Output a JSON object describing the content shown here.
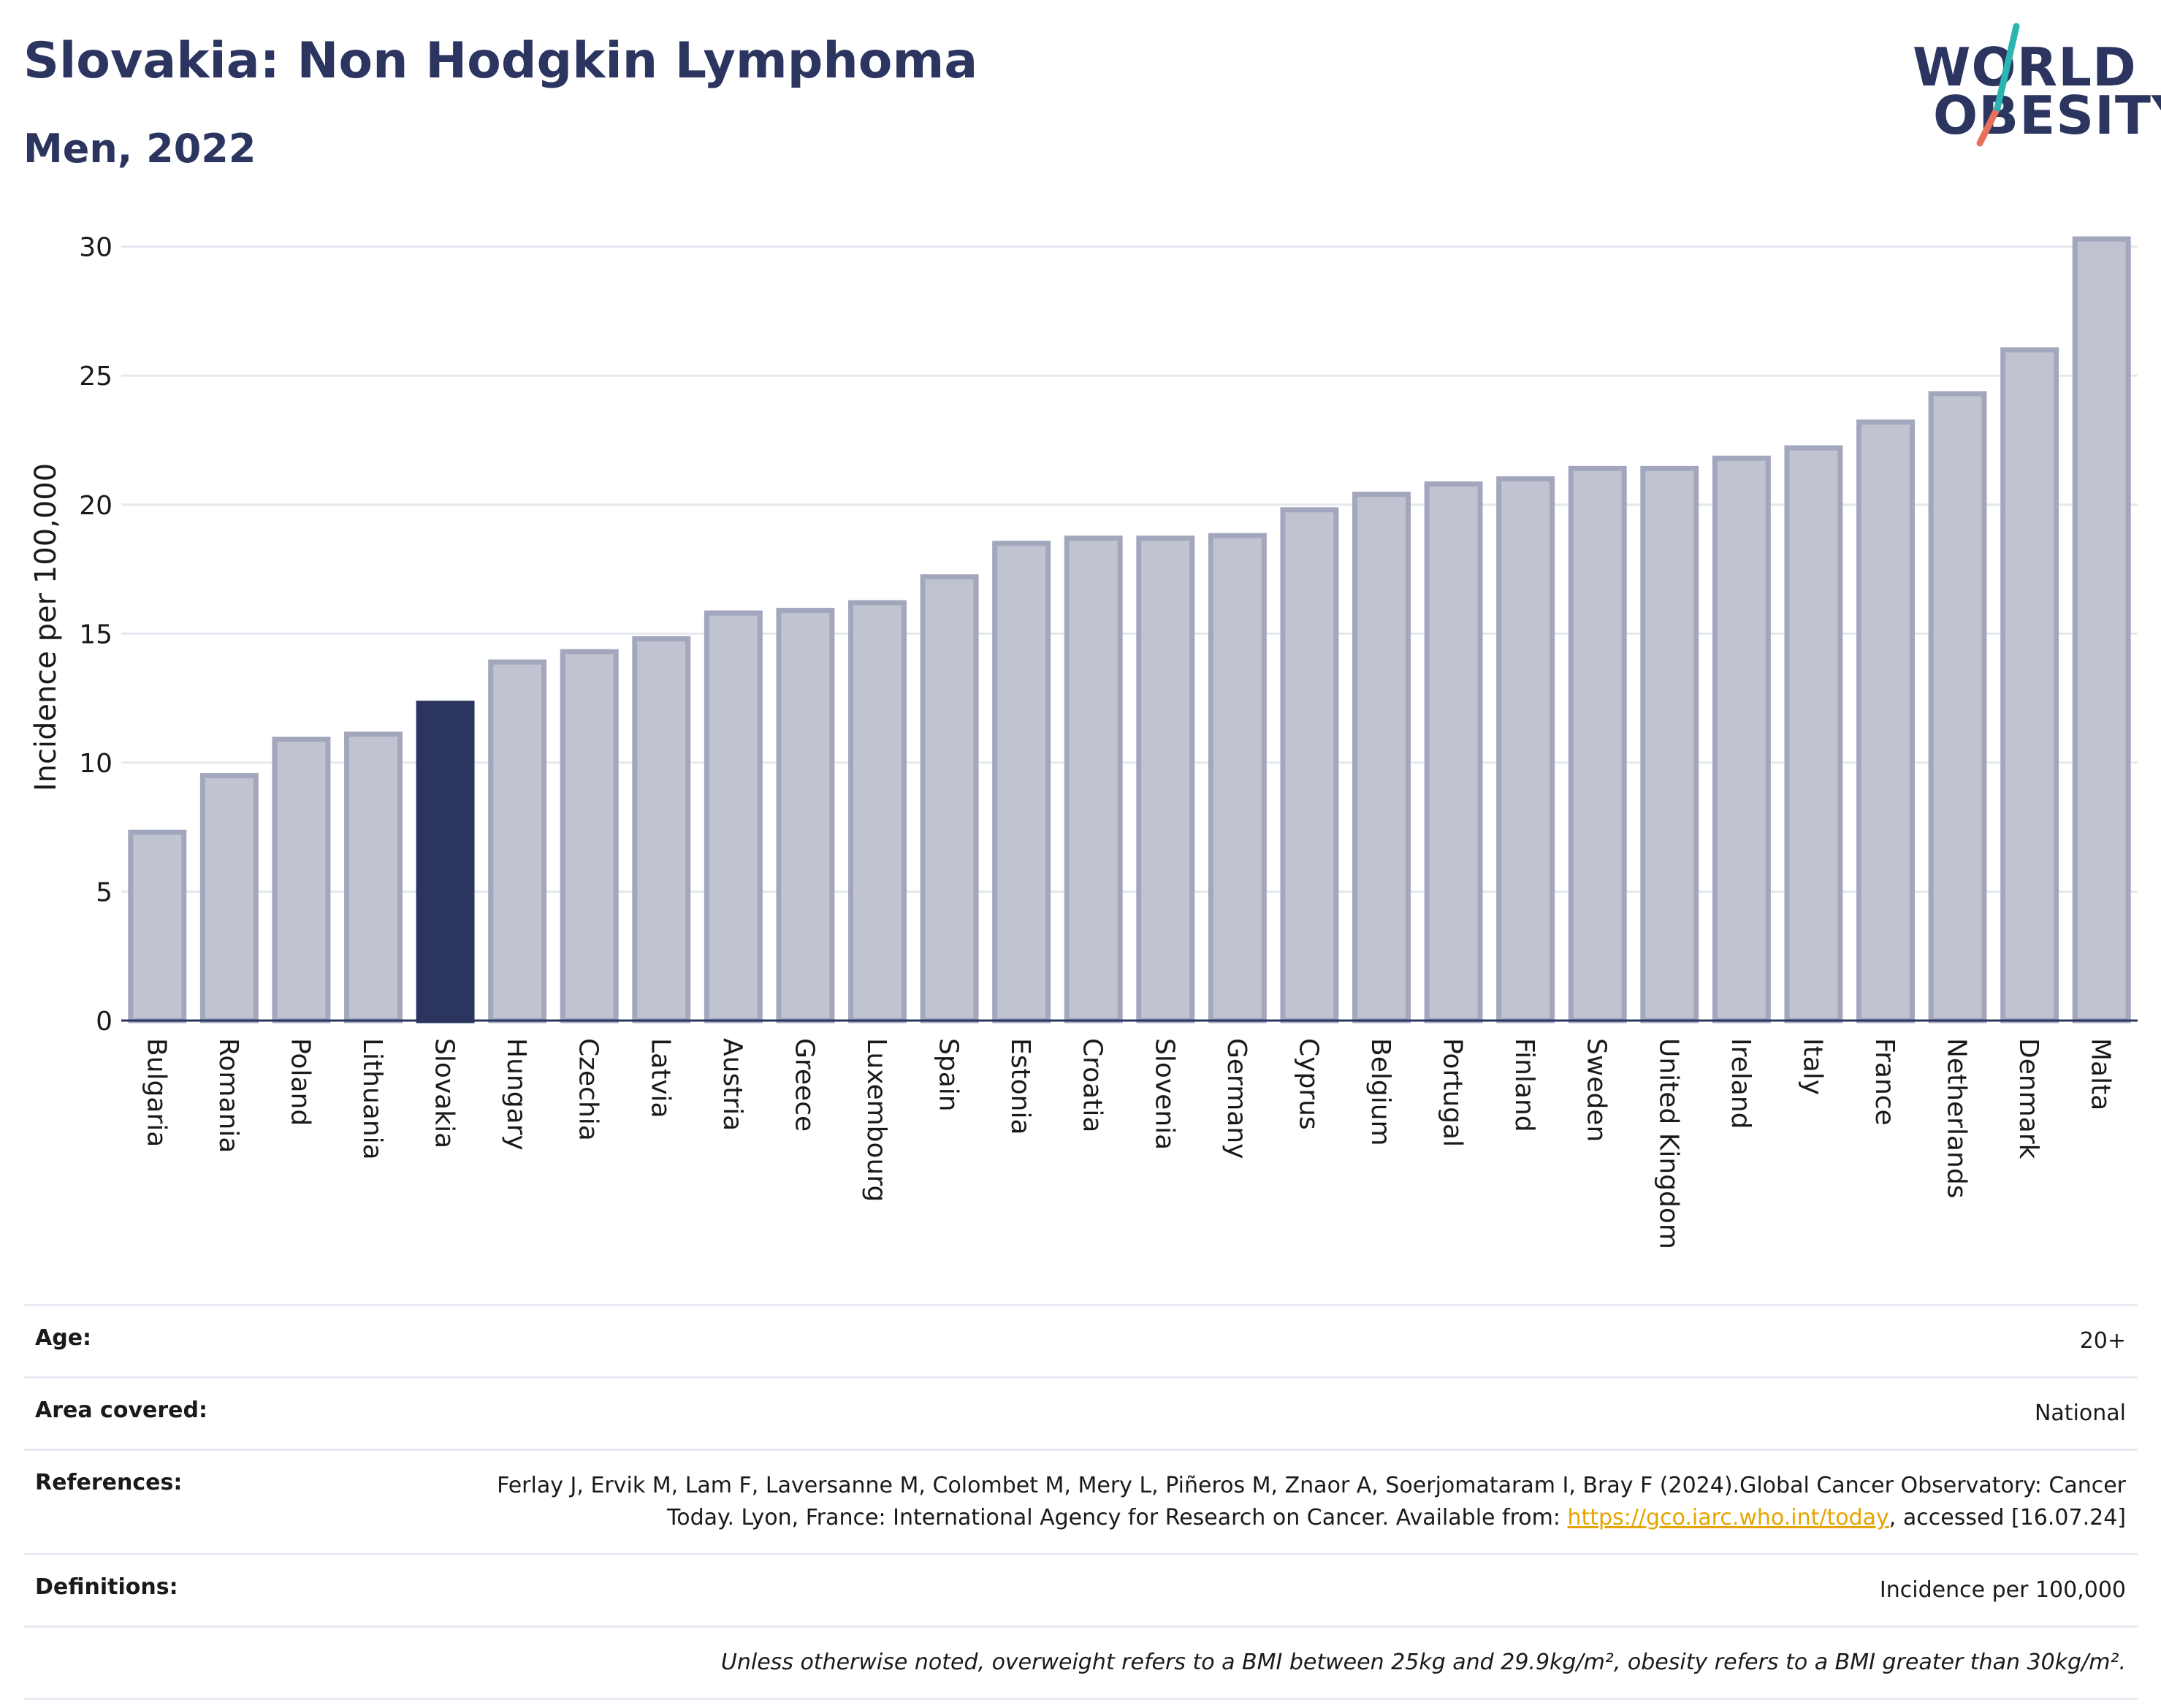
{
  "header": {
    "title": "Slovakia: Non Hodgkin Lymphoma",
    "subtitle": "Men, 2022"
  },
  "logo": {
    "line1": "WORLD",
    "line2": "OBESITY",
    "slash_color_top": "#2bb5b0",
    "slash_color_bottom": "#e8705a"
  },
  "colors": {
    "bar": "#c0c3d0",
    "bar_stroke": "#a2a7bd",
    "highlight": "#2b3560",
    "grid": "#e6e8ef",
    "axis": "#2b3560"
  },
  "chart_data": {
    "type": "bar",
    "ylabel": "Incidence per 100,000",
    "ylim": [
      0,
      30.5
    ],
    "yticks": [
      0,
      5,
      10,
      15,
      20,
      25,
      30
    ],
    "grid": true,
    "highlight": "Slovakia",
    "categories": [
      "Bulgaria",
      "Romania",
      "Poland",
      "Lithuania",
      "Slovakia",
      "Hungary",
      "Czechia",
      "Latvia",
      "Austria",
      "Greece",
      "Luxembourg",
      "Spain",
      "Estonia",
      "Croatia",
      "Slovenia",
      "Germany",
      "Cyprus",
      "Belgium",
      "Portugal",
      "Finland",
      "Sweden",
      "United Kingdom",
      "Ireland",
      "Italy",
      "France",
      "Netherlands",
      "Denmark",
      "Malta"
    ],
    "values": [
      7.3,
      9.5,
      10.9,
      11.1,
      12.3,
      13.9,
      14.3,
      14.8,
      15.8,
      15.9,
      16.2,
      17.2,
      18.5,
      18.7,
      18.7,
      18.8,
      19.8,
      20.4,
      20.8,
      21.0,
      21.4,
      21.4,
      21.8,
      22.2,
      23.2,
      24.3,
      26.0,
      30.3
    ]
  },
  "meta": {
    "age_label": "Age:",
    "age_value": "20+",
    "area_label": "Area covered:",
    "area_value": "National",
    "references_label": "References:",
    "references_text": "Ferlay J, Ervik M, Lam F, Laversanne M, Colombet M, Mery L, Piñeros M, Znaor A, Soerjomataram I, Bray F (2024).Global Cancer Observatory: Cancer Today. Lyon, France: International Agency for Research on Cancer. Available from: ",
    "references_link": "https://gco.iarc.who.int/today",
    "references_tail": ", accessed [16.07.24]",
    "definitions_label": "Definitions:",
    "definitions_value": "Incidence per 100,000",
    "note": "Unless otherwise noted, overweight refers to a BMI between 25kg and 29.9kg/m², obesity refers to a BMI greater than 30kg/m²."
  }
}
